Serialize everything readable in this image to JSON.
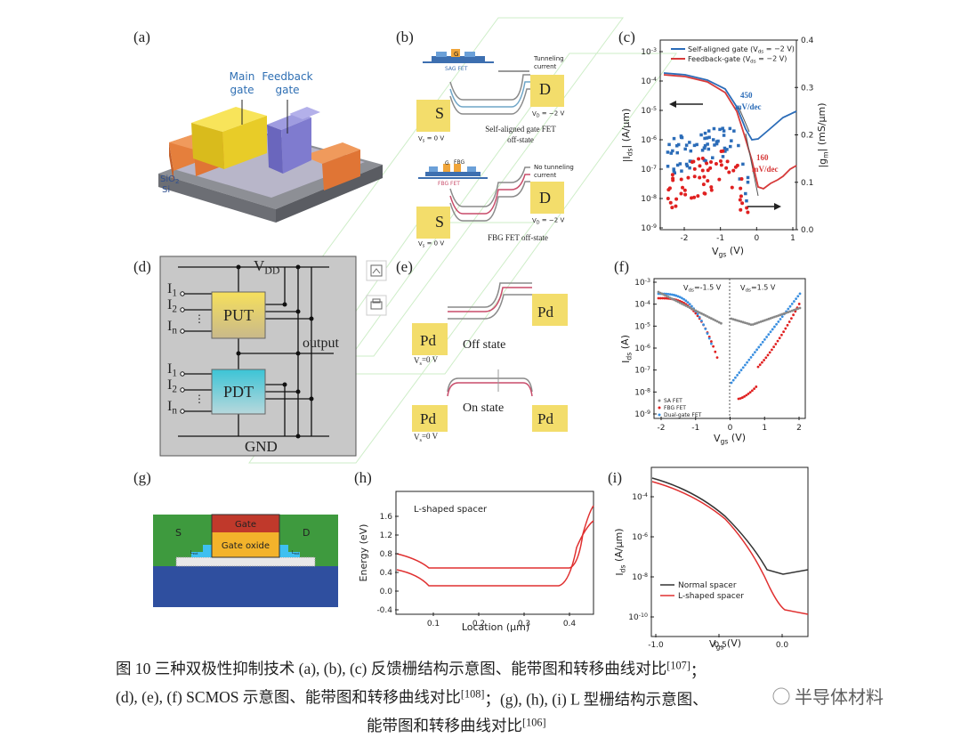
{
  "figure": {
    "a": {
      "label": "(a)",
      "main_gate": [
        "Main",
        "gate"
      ],
      "feedback_gate": [
        "Feedback",
        "gate"
      ],
      "sio2": [
        {
          "t": "SiO"
        },
        {
          "sub": "2"
        }
      ],
      "si": "Si"
    },
    "b": {
      "label": "(b)",
      "top": {
        "device": "SAG FET",
        "g": "G",
        "s": "S",
        "d": "D",
        "tunneling": [
          "Tunneling",
          "current"
        ],
        "vs": [
          {
            "t": "V"
          },
          {
            "sub": "s"
          },
          {
            "t": " = 0 V"
          }
        ],
        "vd": [
          {
            "t": "V"
          },
          {
            "sub": "D"
          },
          {
            "t": " = −2 V"
          }
        ],
        "caption": [
          "Self-aligned gate FET",
          "off-state"
        ]
      },
      "bottom": {
        "device": "FBG FET",
        "g": "G",
        "fbg": "FBG",
        "s": "S",
        "d": "D",
        "tunneling": [
          "No tunneling",
          "current"
        ],
        "vs": [
          {
            "t": "V"
          },
          {
            "sub": "s"
          },
          {
            "t": " = 0 V"
          }
        ],
        "vd": [
          {
            "t": "V"
          },
          {
            "sub": "D"
          },
          {
            "t": " = −2 V"
          }
        ],
        "caption": "FBG FET  off-state"
      }
    },
    "c": {
      "label": "(c)",
      "legend": [
        [
          {
            "t": "Self-aligned gate ("
          },
          {
            "t": "V"
          },
          {
            "sub": "ds"
          },
          {
            "t": " = −2 V)"
          }
        ],
        [
          {
            "t": "Feedback-gate ("
          },
          {
            "t": "V"
          },
          {
            "sub": "ds"
          },
          {
            "t": " = −2 V)"
          }
        ]
      ],
      "slope_blue": [
        "450",
        "mV/dec"
      ],
      "slope_red": [
        "160",
        "mV/dec"
      ],
      "yticks": [
        [
          {
            "t": "10"
          },
          {
            "sup": "-3"
          }
        ],
        [
          {
            "t": "10"
          },
          {
            "sup": "-4"
          }
        ],
        [
          {
            "t": "10"
          },
          {
            "sup": "-5"
          }
        ],
        [
          {
            "t": "10"
          },
          {
            "sup": "-6"
          }
        ],
        [
          {
            "t": "10"
          },
          {
            "sup": "-7"
          }
        ],
        [
          {
            "t": "10"
          },
          {
            "sup": "-8"
          }
        ],
        [
          {
            "t": "10"
          },
          {
            "sup": "-9"
          }
        ]
      ],
      "y2ticks": [
        "0.4",
        "0.3",
        "0.2",
        "0.1",
        "0.0"
      ],
      "xticks": [
        "-2",
        "-1",
        "0",
        "1"
      ],
      "ylabel": [
        {
          "t": "|I"
        },
        {
          "sub": "ds"
        },
        {
          "t": "| (A/μm)"
        }
      ],
      "y2label": [
        {
          "t": "|g"
        },
        {
          "sub": "m"
        },
        {
          "t": "| (mS/μm)"
        }
      ],
      "xlabel": [
        {
          "t": "V"
        },
        {
          "sub": "gs"
        },
        {
          "t": " (V)"
        }
      ]
    },
    "d": {
      "label": "(d)",
      "vdd": [
        {
          "t": "V"
        },
        {
          "sub": "DD"
        }
      ],
      "gnd": "GND",
      "put": "PUT",
      "pdt": "PDT",
      "output": "output",
      "inputs": [
        [
          {
            "t": "I"
          },
          {
            "sub": "1"
          }
        ],
        [
          {
            "t": "I"
          },
          {
            "sub": "2"
          }
        ],
        [
          {
            "t": "I"
          },
          {
            "sub": "n"
          }
        ]
      ],
      "dots": "⋮"
    },
    "e": {
      "label": "(e)",
      "pd": "Pd",
      "off": "Off state",
      "on": "On state",
      "vs": [
        {
          "t": "V"
        },
        {
          "sub": "s"
        },
        {
          "t": "=0 V"
        }
      ]
    },
    "f": {
      "label": "(f)",
      "vds_left": [
        {
          "t": "V"
        },
        {
          "sub": "ds"
        },
        {
          "t": "=-1.5 V"
        }
      ],
      "vds_right": [
        {
          "t": "V"
        },
        {
          "sub": "ds"
        },
        {
          "t": "=1.5 V"
        }
      ],
      "legend": [
        "SA FET",
        "FBG FET",
        "Dual-gate FET"
      ],
      "yticks": [
        [
          {
            "t": "10"
          },
          {
            "sup": "-3"
          }
        ],
        [
          {
            "t": "10"
          },
          {
            "sup": "-4"
          }
        ],
        [
          {
            "t": "10"
          },
          {
            "sup": "-5"
          }
        ],
        [
          {
            "t": "10"
          },
          {
            "sup": "-6"
          }
        ],
        [
          {
            "t": "10"
          },
          {
            "sup": "-7"
          }
        ],
        [
          {
            "t": "10"
          },
          {
            "sup": "-8"
          }
        ],
        [
          {
            "t": "10"
          },
          {
            "sup": "-9"
          }
        ]
      ],
      "xticks": [
        "-2",
        "-1",
        "0",
        "1",
        "2"
      ],
      "ylabel": [
        {
          "t": "I"
        },
        {
          "sub": "ds"
        },
        {
          "t": " (A)"
        }
      ],
      "xlabel": [
        {
          "t": "V"
        },
        {
          "sub": "gs"
        },
        {
          "t": " (V)"
        }
      ]
    },
    "g": {
      "label": "(g)",
      "gate": "Gate",
      "oxide": "Gate oxide",
      "s": "S",
      "d": "D",
      "lext": [
        {
          "t": "L"
        },
        {
          "sub": "ext"
        }
      ]
    },
    "h": {
      "label": "(h)",
      "legend": "L-shaped spacer",
      "yticks": [
        "1.6",
        "1.2",
        "0.8",
        "0.4",
        "0.0",
        "-0.4"
      ],
      "xticks": [
        "0.1",
        "0.2",
        "0.3",
        "0.4"
      ],
      "ylabel": "Energy (eV)",
      "xlabel": "Location (μm)"
    },
    "i": {
      "label": "(i)",
      "legend": [
        "Normal spacer",
        "L-shaped spacer"
      ],
      "yticks": [
        [
          {
            "t": "10"
          },
          {
            "sup": "-4"
          }
        ],
        [
          {
            "t": "10"
          },
          {
            "sup": "-6"
          }
        ],
        [
          {
            "t": "10"
          },
          {
            "sup": "-8"
          }
        ],
        [
          {
            "t": "10"
          },
          {
            "sup": "-10"
          }
        ]
      ],
      "xticks": [
        "-1.0",
        "-0.5",
        "0.0"
      ],
      "ylabel": [
        {
          "t": "I"
        },
        {
          "sub": "ds"
        },
        {
          "t": " (A/μm)"
        }
      ],
      "xlabel": [
        {
          "t": "V"
        },
        {
          "sub": "gs"
        },
        {
          "t": " (V)"
        }
      ]
    }
  },
  "caption": [
    [
      {
        "t": "图 10  三种双极性抑制技术 (a), (b), (c) 反馈栅结构示意图、能带图和转移曲线对比"
      },
      {
        "sup": "[107]"
      },
      {
        "t": "；"
      }
    ],
    [
      {
        "t": "(d), (e), (f) SCMOS 示意图、能带图和转移曲线对比"
      },
      {
        "sup": "[108]"
      },
      {
        "t": "；(g), (h), (i) L 型栅结构示意图、"
      }
    ],
    [
      {
        "t": "能带图和转移曲线对比"
      },
      {
        "sup": "[106]"
      }
    ]
  ],
  "watermark": "半导体材料"
}
